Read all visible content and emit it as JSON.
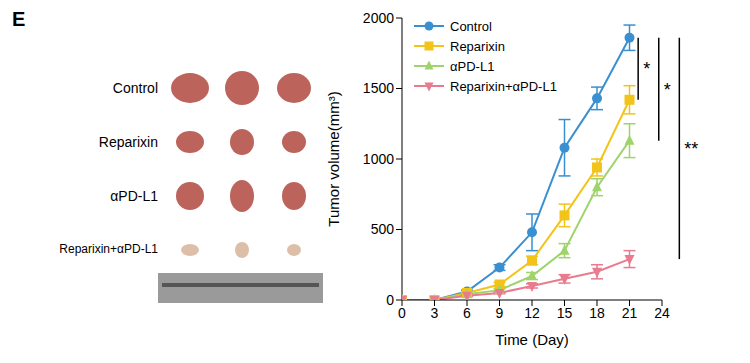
{
  "panel_label": "E",
  "chart_data": {
    "type": "line",
    "x_label": "Time (Day)",
    "y_label": "Tumor volume(mm³)",
    "x": [
      0,
      3,
      6,
      9,
      12,
      15,
      18,
      21
    ],
    "xlim": [
      0,
      24
    ],
    "xticks": [
      0,
      3,
      6,
      9,
      12,
      15,
      18,
      21,
      24
    ],
    "ylim": [
      0,
      2000
    ],
    "yticks": [
      0,
      500,
      1000,
      1500,
      2000
    ],
    "grid": false,
    "legend": "upper left",
    "series": [
      {
        "name": "Control",
        "color": "#3a8fd0",
        "marker": "circle",
        "values": [
          0,
          0,
          60,
          230,
          480,
          1080,
          1430,
          1860
        ],
        "errors": [
          0,
          0,
          10,
          20,
          130,
          200,
          80,
          90
        ]
      },
      {
        "name": "Reparixin",
        "color": "#f2c419",
        "marker": "square",
        "values": [
          0,
          0,
          50,
          110,
          280,
          600,
          940,
          1420
        ],
        "errors": [
          0,
          0,
          5,
          15,
          30,
          80,
          60,
          100
        ]
      },
      {
        "name": "αPD-L1",
        "color": "#9fd36b",
        "marker": "triangle",
        "values": [
          0,
          0,
          40,
          70,
          170,
          350,
          800,
          1130
        ],
        "errors": [
          0,
          0,
          5,
          10,
          25,
          50,
          60,
          120
        ]
      },
      {
        "name": "Reparixin+αPD-L1",
        "color": "#e97b8f",
        "marker": "triangle-down",
        "values": [
          0,
          0,
          30,
          50,
          100,
          150,
          200,
          290
        ],
        "errors": [
          0,
          0,
          5,
          5,
          15,
          30,
          50,
          60
        ]
      }
    ],
    "annotations": [
      {
        "text": "*",
        "from": "Control",
        "to": "Reparixin"
      },
      {
        "text": "*",
        "from": "Control",
        "to": "αPD-L1"
      },
      {
        "text": "**",
        "from": "Control",
        "to": "Reparixin+αPD-L1"
      }
    ]
  }
}
